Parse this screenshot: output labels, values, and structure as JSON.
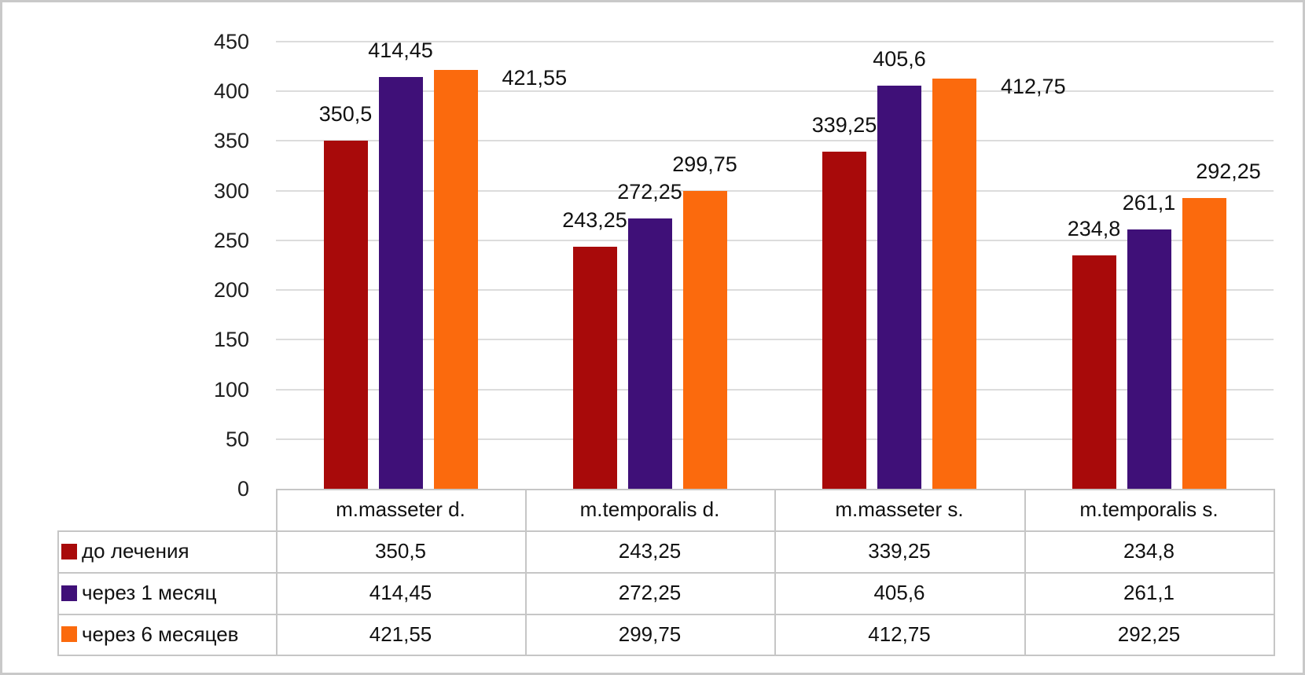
{
  "figure": {
    "background": "#FFFFFF",
    "border_color": "#C9C9C9",
    "gridline_color": "#DCDCDC",
    "table_border_color": "#C6C6C6"
  },
  "chart_data": {
    "type": "bar",
    "title": "",
    "categories": [
      "m.masseter d.",
      "m.temporalis d.",
      "m.masseter s.",
      "m.temporalis s."
    ],
    "series": [
      {
        "name": "до лечения",
        "color": "#A80A0A",
        "values": [
          350.5,
          243.25,
          339.25,
          234.8
        ],
        "labels": [
          "350,5",
          "243,25",
          "339,25",
          "234,8"
        ]
      },
      {
        "name": "через 1 месяц",
        "color": "#3F1078",
        "values": [
          414.45,
          272.25,
          405.6,
          261.1
        ],
        "labels": [
          "414,45",
          "272,25",
          "405,6",
          "261,1"
        ]
      },
      {
        "name": "через 6 месяцев",
        "color": "#FB6A0D",
        "values": [
          421.55,
          299.75,
          412.75,
          292.25
        ],
        "labels": [
          "421,55",
          "299,75",
          "412,75",
          "292,25"
        ]
      }
    ],
    "y_axis": {
      "min": 0,
      "max": 450,
      "step": 50,
      "tick_labels": [
        "0",
        "50",
        "100",
        "150",
        "200",
        "250",
        "300",
        "350",
        "400",
        "450"
      ]
    },
    "grid": true,
    "legend_position": "data-table-left",
    "data_table_shown": true
  }
}
